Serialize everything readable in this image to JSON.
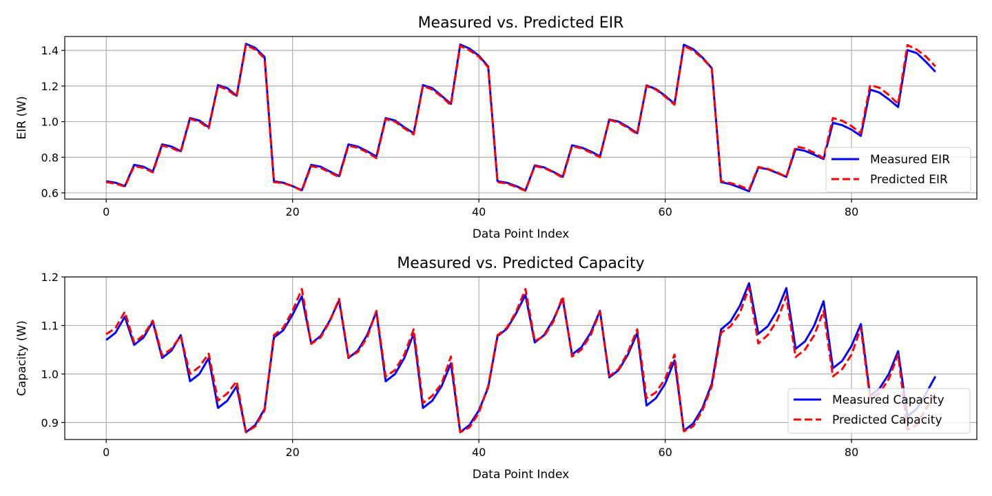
{
  "colors": {
    "measured": "#0000ff",
    "predicted": "#ff0000",
    "grid": "#b0b0b0",
    "axes": "#000000",
    "legend_border": "#cccccc"
  },
  "chart_data": [
    {
      "type": "line",
      "title": "Measured vs. Predicted EIR",
      "xlabel": "Data Point Index",
      "ylabel": "EIR (W)",
      "xlim": [
        -4.45,
        93.45
      ],
      "ylim": [
        0.565,
        1.478
      ],
      "xticks": [
        0,
        20,
        40,
        60,
        80
      ],
      "xtick_labels": [
        "0",
        "20",
        "40",
        "60",
        "80"
      ],
      "yticks": [
        0.6,
        0.8,
        1.0,
        1.2,
        1.4
      ],
      "ytick_labels": [
        "0.6",
        "0.8",
        "1.0",
        "1.2",
        "1.4"
      ],
      "grid": true,
      "legend_position": "lower-right",
      "x": [
        0,
        1,
        2,
        3,
        4,
        5,
        6,
        7,
        8,
        9,
        10,
        11,
        12,
        13,
        14,
        15,
        16,
        17,
        18,
        19,
        20,
        21,
        22,
        23,
        24,
        25,
        26,
        27,
        28,
        29,
        30,
        31,
        32,
        33,
        34,
        35,
        36,
        37,
        38,
        39,
        40,
        41,
        42,
        43,
        44,
        45,
        46,
        47,
        48,
        49,
        50,
        51,
        52,
        53,
        54,
        55,
        56,
        57,
        58,
        59,
        60,
        61,
        62,
        63,
        64,
        65,
        66,
        67,
        68,
        69,
        70,
        71,
        72,
        73,
        74,
        75,
        76,
        77,
        78,
        79,
        80,
        81,
        82,
        83,
        84,
        85,
        86,
        87,
        88,
        89
      ],
      "series": [
        {
          "name": "Measured EIR",
          "style": "solid",
          "color": "#0000ff",
          "values": [
            0.665,
            0.657,
            0.638,
            0.757,
            0.747,
            0.72,
            0.872,
            0.86,
            0.834,
            1.02,
            1.006,
            0.968,
            1.205,
            1.188,
            1.145,
            1.437,
            1.414,
            1.363,
            0.665,
            0.657,
            0.638,
            0.615,
            0.757,
            0.747,
            0.72,
            0.694,
            0.872,
            0.86,
            0.834,
            0.804,
            1.02,
            1.006,
            0.968,
            0.935,
            1.205,
            1.188,
            1.145,
            1.1,
            1.433,
            1.41,
            1.37,
            1.31,
            0.665,
            0.657,
            0.638,
            0.614,
            0.754,
            0.743,
            0.718,
            0.69,
            0.867,
            0.855,
            0.833,
            0.805,
            1.012,
            1.0,
            0.97,
            0.935,
            1.203,
            1.183,
            1.145,
            1.1,
            1.432,
            1.407,
            1.36,
            1.3,
            0.66,
            0.649,
            0.63,
            0.609,
            0.742,
            0.733,
            0.712,
            0.69,
            0.846,
            0.836,
            0.814,
            0.79,
            0.993,
            0.98,
            0.955,
            0.92,
            1.18,
            1.163,
            1.125,
            1.082,
            1.402,
            1.385,
            1.335,
            1.28
          ]
        },
        {
          "name": "Predicted EIR",
          "style": "dashed",
          "color": "#ff0000",
          "values": [
            0.66,
            0.652,
            0.635,
            0.75,
            0.74,
            0.715,
            0.865,
            0.853,
            0.828,
            1.015,
            1.0,
            0.962,
            1.2,
            1.18,
            1.14,
            1.43,
            1.405,
            1.355,
            0.66,
            0.655,
            0.638,
            0.612,
            0.75,
            0.74,
            0.715,
            0.688,
            0.865,
            0.853,
            0.828,
            0.795,
            1.015,
            1.0,
            0.962,
            0.928,
            1.2,
            1.18,
            1.14,
            1.092,
            1.425,
            1.4,
            1.365,
            1.305,
            0.66,
            0.653,
            0.633,
            0.612,
            0.75,
            0.74,
            0.715,
            0.685,
            0.862,
            0.85,
            0.826,
            0.8,
            1.01,
            0.995,
            0.965,
            0.93,
            1.2,
            1.18,
            1.14,
            1.095,
            1.425,
            1.4,
            1.355,
            1.3,
            0.665,
            0.655,
            0.64,
            0.618,
            0.745,
            0.735,
            0.715,
            0.69,
            0.86,
            0.85,
            0.825,
            0.795,
            1.02,
            1.005,
            0.975,
            0.935,
            1.205,
            1.19,
            1.15,
            1.1,
            1.43,
            1.405,
            1.365,
            1.31
          ]
        }
      ]
    },
    {
      "type": "line",
      "title": "Measured vs. Predicted Capacity",
      "xlabel": "Data Point Index",
      "ylabel": "Capacity (W)",
      "xlim": [
        -4.45,
        93.45
      ],
      "ylim": [
        0.865,
        1.2
      ],
      "xticks": [
        0,
        20,
        40,
        60,
        80
      ],
      "xtick_labels": [
        "0",
        "20",
        "40",
        "60",
        "80"
      ],
      "yticks": [
        0.9,
        1.0,
        1.1,
        1.2
      ],
      "ytick_labels": [
        "0.9",
        "1.0",
        "1.1",
        "1.2"
      ],
      "grid": true,
      "legend_position": "lower-right",
      "x": [
        0,
        1,
        2,
        3,
        4,
        5,
        6,
        7,
        8,
        9,
        10,
        11,
        12,
        13,
        14,
        15,
        16,
        17,
        18,
        19,
        20,
        21,
        22,
        23,
        24,
        25,
        26,
        27,
        28,
        29,
        30,
        31,
        32,
        33,
        34,
        35,
        36,
        37,
        38,
        39,
        40,
        41,
        42,
        43,
        44,
        45,
        46,
        47,
        48,
        49,
        50,
        51,
        52,
        53,
        54,
        55,
        56,
        57,
        58,
        59,
        60,
        61,
        62,
        63,
        64,
        65,
        66,
        67,
        68,
        69,
        70,
        71,
        72,
        73,
        74,
        75,
        76,
        77,
        78,
        79,
        80,
        81,
        82,
        83,
        84,
        85,
        86,
        87,
        88,
        89
      ],
      "series": [
        {
          "name": "Measured Capacity",
          "style": "solid",
          "color": "#0000ff",
          "values": [
            1.07,
            1.085,
            1.118,
            1.06,
            1.075,
            1.108,
            1.033,
            1.048,
            1.08,
            0.985,
            1.0,
            1.033,
            0.93,
            0.945,
            0.975,
            0.88,
            0.895,
            0.928,
            1.075,
            1.09,
            1.122,
            1.16,
            1.063,
            1.078,
            1.11,
            1.152,
            1.033,
            1.048,
            1.08,
            1.128,
            0.985,
            1.0,
            1.033,
            1.083,
            0.93,
            0.945,
            0.975,
            1.022,
            0.88,
            0.895,
            0.925,
            0.972,
            1.078,
            1.093,
            1.125,
            1.163,
            1.065,
            1.08,
            1.112,
            1.155,
            1.04,
            1.055,
            1.085,
            1.13,
            0.993,
            1.008,
            1.04,
            1.085,
            0.935,
            0.95,
            0.98,
            1.028,
            0.883,
            0.898,
            0.93,
            0.98,
            1.092,
            1.108,
            1.14,
            1.187,
            1.083,
            1.098,
            1.13,
            1.177,
            1.052,
            1.067,
            1.1,
            1.15,
            1.012,
            1.027,
            1.058,
            1.103,
            0.955,
            0.97,
            1.0,
            1.047,
            0.913,
            0.928,
            0.96,
            0.995
          ]
        },
        {
          "name": "Predicted Capacity",
          "style": "dashed",
          "color": "#ff0000",
          "values": [
            1.082,
            1.095,
            1.128,
            1.065,
            1.08,
            1.11,
            1.038,
            1.052,
            1.078,
            1.0,
            1.015,
            1.042,
            0.945,
            0.96,
            0.985,
            0.88,
            0.892,
            0.925,
            1.08,
            1.095,
            1.13,
            1.175,
            1.062,
            1.075,
            1.108,
            1.155,
            1.035,
            1.045,
            1.075,
            1.13,
            0.995,
            1.008,
            1.04,
            1.092,
            0.94,
            0.955,
            0.98,
            1.036,
            0.88,
            0.89,
            0.92,
            0.975,
            1.08,
            1.095,
            1.128,
            1.175,
            1.068,
            1.078,
            1.108,
            1.16,
            1.036,
            1.05,
            1.08,
            1.128,
            0.996,
            1.01,
            1.045,
            1.092,
            0.95,
            0.962,
            0.99,
            1.04,
            0.882,
            0.892,
            0.925,
            0.975,
            1.085,
            1.098,
            1.125,
            1.178,
            1.063,
            1.08,
            1.11,
            1.16,
            1.035,
            1.05,
            1.08,
            1.13,
            0.995,
            1.01,
            1.04,
            1.095,
            0.95,
            0.96,
            0.99,
            1.04,
            0.885,
            0.895,
            0.928,
            0.96
          ]
        }
      ]
    }
  ]
}
